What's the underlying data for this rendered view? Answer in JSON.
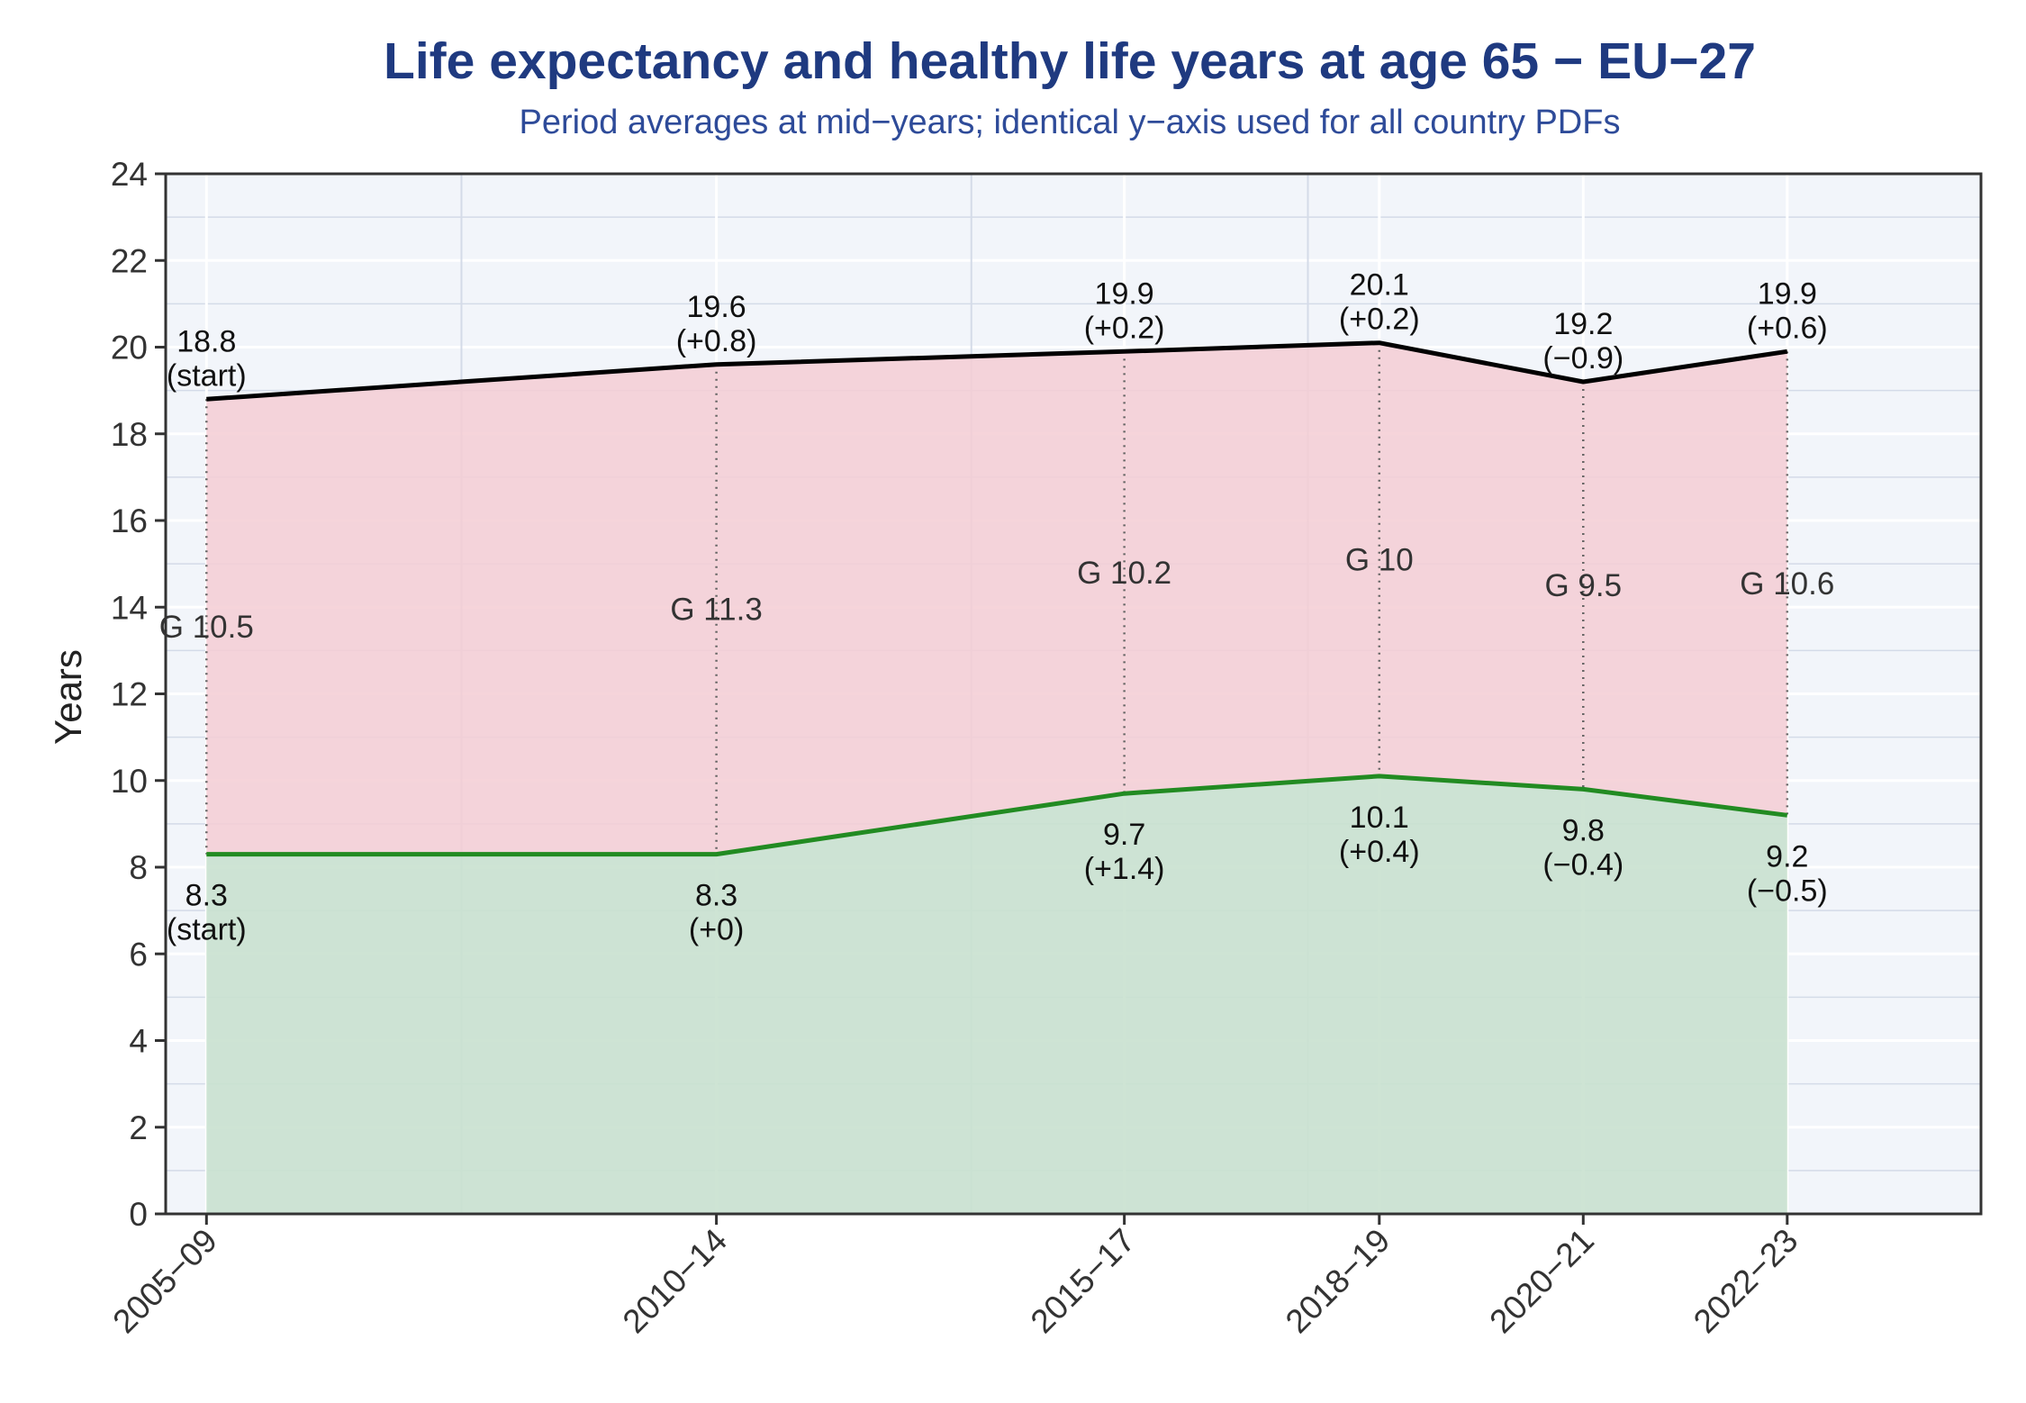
{
  "chart_data": {
    "type": "area",
    "title": "Life expectancy and healthy life years at age 65 − EU−27",
    "subtitle": "Period averages at mid−years; identical y−axis used for all country PDFs",
    "ylabel": "Years",
    "xlabel": "",
    "ylim": [
      0,
      24
    ],
    "y_ticks": [
      0,
      2,
      4,
      6,
      8,
      10,
      12,
      14,
      16,
      18,
      20,
      22,
      24
    ],
    "x_minor_ticks": [
      2009.5,
      2014.5,
      2017.8,
      2020.5,
      2022.5
    ],
    "x_range": [
      2006.6,
      2024.4
    ],
    "grid": true,
    "categories": [
      "2005−09",
      "2010−14",
      "2015−17",
      "2018−19",
      "2020−21",
      "2022−23"
    ],
    "x": [
      2007,
      2012,
      2016,
      2018.5,
      2020.5,
      2022.5
    ],
    "series": [
      {
        "values": [
          18.8,
          19.6,
          19.9,
          20.1,
          19.2,
          19.9
        ],
        "color": "#000000",
        "fill": "#f4cdd3",
        "labels": [
          "18.8\n(start)",
          "19.6\n(+0.8)",
          "19.9\n(+0.2)",
          "20.1\n(+0.2)",
          "19.2\n(−0.9)",
          "19.9\n(+0.6)"
        ]
      },
      {
        "values": [
          8.3,
          8.3,
          9.7,
          10.1,
          9.8,
          9.2
        ],
        "color": "#228b22",
        "fill": "#c9e1cf",
        "labels": [
          "8.3\n(start)",
          "8.3\n(+0)",
          "9.7\n(+1.4)",
          "10.1\n(+0.4)",
          "9.8\n(−0.4)",
          "9.2\n(−0.5)"
        ]
      }
    ],
    "gap_labels": [
      "G 10.5",
      "G 11.3",
      "G 10.2",
      "G 10",
      "G 9.5",
      "G 10.6"
    ],
    "colors": {
      "plot_background": "#f2f5fa",
      "title": "#1f3a80",
      "subtitle": "#2e4b99"
    }
  }
}
